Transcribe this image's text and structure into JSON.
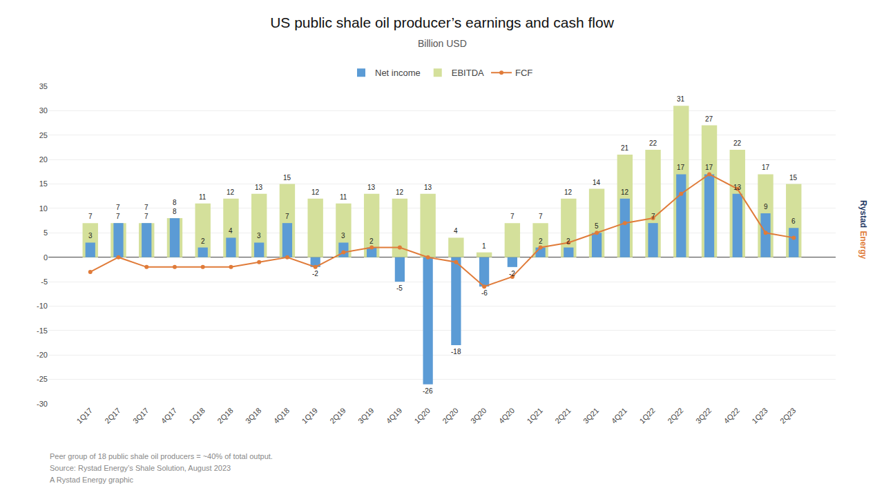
{
  "chart_data": {
    "type": "bar",
    "title": "US public shale oil producer’s earnings and cash flow",
    "subtitle": "Billion USD",
    "categories": [
      "1Q17",
      "2Q17",
      "3Q17",
      "4Q17",
      "1Q18",
      "2Q18",
      "3Q18",
      "4Q18",
      "1Q19",
      "2Q19",
      "3Q19",
      "4Q19",
      "1Q20",
      "2Q20",
      "3Q20",
      "4Q20",
      "1Q21",
      "2Q21",
      "3Q21",
      "4Q21",
      "1Q22",
      "2Q22",
      "3Q22",
      "4Q22",
      "1Q23",
      "2Q23"
    ],
    "series": [
      {
        "name": "Net income",
        "type": "bar",
        "color": "#5b9bd5",
        "data_labels": true,
        "values": [
          3,
          7,
          7,
          8,
          2,
          4,
          3,
          7,
          -2,
          3,
          2,
          -5,
          -26,
          -18,
          -6,
          -2,
          2,
          2,
          5,
          12,
          7,
          17,
          17,
          13,
          9,
          6
        ]
      },
      {
        "name": "EBITDA",
        "type": "bar",
        "color": "#d4e09b",
        "data_labels": true,
        "values": [
          7,
          7,
          7,
          8,
          11,
          12,
          13,
          15,
          12,
          11,
          13,
          12,
          13,
          4,
          1,
          7,
          7,
          12,
          14,
          21,
          22,
          31,
          27,
          22,
          17,
          15
        ]
      },
      {
        "name": "FCF",
        "type": "line",
        "color": "#e07b39",
        "marker": "circle",
        "values": [
          -3,
          0,
          -2,
          -2,
          -2,
          -2,
          -1,
          0,
          -2,
          1,
          2,
          2,
          0,
          -1,
          -6,
          -4,
          2,
          3,
          5,
          7,
          8,
          13,
          17,
          14,
          5,
          4
        ]
      }
    ],
    "ylim": [
      -30,
      35
    ],
    "yticks": [
      -30,
      -25,
      -20,
      -15,
      -10,
      -5,
      0,
      5,
      10,
      15,
      20,
      25,
      30,
      35
    ],
    "grid": true,
    "legend": "top",
    "footnotes": [
      "Peer group of 18 public shale oil producers = ~40% of total output.",
      "Source: Rystad Energy’s Shale Solution, August 2023",
      "A Rystad Energy graphic"
    ],
    "annotations": [
      {
        "text": "Rystad",
        "color": "#1f3864"
      },
      {
        "text": "Energy",
        "color": "#e07b39"
      }
    ]
  }
}
